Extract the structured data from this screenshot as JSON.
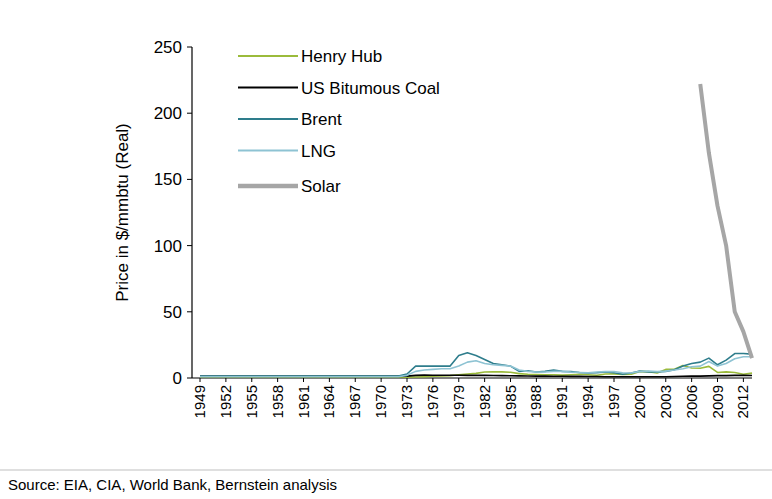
{
  "chart_data": {
    "type": "line",
    "y_label": "Price in $/mmbtu (Real)",
    "source": "Source: EIA, CIA, World Bank, Bernstein analysis",
    "x": [
      1949,
      1950,
      1951,
      1952,
      1953,
      1954,
      1955,
      1956,
      1957,
      1958,
      1959,
      1960,
      1961,
      1962,
      1963,
      1964,
      1965,
      1966,
      1967,
      1968,
      1969,
      1970,
      1971,
      1972,
      1973,
      1974,
      1975,
      1976,
      1977,
      1978,
      1979,
      1980,
      1981,
      1982,
      1983,
      1984,
      1985,
      1986,
      1987,
      1988,
      1989,
      1990,
      1991,
      1992,
      1993,
      1994,
      1995,
      1996,
      1997,
      1998,
      1999,
      2000,
      2001,
      2002,
      2003,
      2004,
      2005,
      2006,
      2007,
      2008,
      2009,
      2010,
      2011,
      2012,
      2013
    ],
    "xlim": [
      1949,
      2013
    ],
    "xticks": [
      1949,
      1952,
      1955,
      1958,
      1961,
      1964,
      1967,
      1970,
      1973,
      1976,
      1979,
      1982,
      1985,
      1988,
      1991,
      1994,
      1997,
      2000,
      2003,
      2006,
      2009,
      2012
    ],
    "ylim": [
      0,
      250
    ],
    "yticks": [
      0,
      50,
      100,
      150,
      200,
      250
    ],
    "grid": false,
    "legend": "upper-left",
    "series": [
      {
        "name": "Henry Hub",
        "color": "#9bbb3b",
        "line_style": "solid",
        "values": [
          0.4,
          0.4,
          0.4,
          0.4,
          0.4,
          0.4,
          0.4,
          0.4,
          0.4,
          0.4,
          0.4,
          0.4,
          0.4,
          0.4,
          0.4,
          0.4,
          0.4,
          0.4,
          0.4,
          0.4,
          0.4,
          0.4,
          0.4,
          0.4,
          0.6,
          0.8,
          1,
          1.3,
          1.6,
          1.8,
          2.5,
          3,
          3.5,
          4.5,
          4.7,
          4.6,
          4.3,
          3.3,
          2.8,
          2.6,
          2.5,
          2.4,
          2.2,
          2.5,
          2.8,
          2.5,
          2.1,
          3,
          3.1,
          2.6,
          2.8,
          5,
          4.8,
          3.8,
          6.5,
          6.6,
          9.5,
          7.5,
          7.4,
          8.8,
          4.2,
          4.6,
          4.1,
          2.8,
          3.7
        ]
      },
      {
        "name": "US Bitumous Coal",
        "color": "#000000",
        "line_style": "solid",
        "values": [
          1.2,
          1.2,
          1.2,
          1.2,
          1.2,
          1.2,
          1.2,
          1.2,
          1.2,
          1.2,
          1.2,
          1.2,
          1.2,
          1.2,
          1.2,
          1.2,
          1.2,
          1.2,
          1.2,
          1.2,
          1.2,
          1.2,
          1.2,
          1.2,
          1.4,
          2,
          2.2,
          2.1,
          2.1,
          2.1,
          2.1,
          2,
          2,
          2,
          1.9,
          1.8,
          1.7,
          1.6,
          1.5,
          1.4,
          1.4,
          1.3,
          1.3,
          1.2,
          1.2,
          1.1,
          1.1,
          1,
          1,
          1,
          1,
          1,
          1,
          1,
          1,
          1.1,
          1.3,
          1.4,
          1.4,
          1.6,
          1.8,
          1.8,
          2,
          2,
          1.9
        ]
      },
      {
        "name": "Brent",
        "color": "#2e7d8c",
        "line_style": "solid",
        "values": [
          1.5,
          1.5,
          1.5,
          1.5,
          1.5,
          1.5,
          1.5,
          1.5,
          1.5,
          1.5,
          1.5,
          1.5,
          1.5,
          1.5,
          1.5,
          1.5,
          1.5,
          1.5,
          1.5,
          1.5,
          1.5,
          1.5,
          1.5,
          1.5,
          3,
          9,
          9,
          9,
          9,
          9,
          17,
          19,
          17,
          14,
          11,
          10,
          9,
          5,
          5.5,
          4.5,
          5,
          6,
          5,
          4.8,
          4.2,
          3.8,
          4,
          4.5,
          4,
          2.8,
          3.8,
          5.2,
          4.5,
          4.5,
          5,
          6.3,
          9,
          11,
          12,
          15,
          10,
          13.5,
          18.5,
          18.5,
          18
        ]
      },
      {
        "name": "LNG",
        "color": "#8ec3d3",
        "line_style": "solid",
        "values": [
          1,
          1,
          1,
          1,
          1,
          1,
          1,
          1,
          1,
          1,
          1,
          1,
          1,
          1,
          1,
          1,
          1,
          1,
          1,
          1,
          1,
          1,
          1,
          1,
          2,
          5,
          6,
          6.5,
          7,
          7,
          9,
          12,
          13,
          11,
          10,
          9.5,
          9,
          6,
          5,
          4.5,
          4.5,
          5,
          5,
          4.5,
          4.2,
          4,
          4.5,
          4.8,
          4.8,
          4,
          3.8,
          5,
          5.3,
          4.8,
          5.2,
          6,
          7,
          8.5,
          9,
          12.5,
          9,
          11,
          14.5,
          16,
          16
        ]
      },
      {
        "name": "Solar",
        "color": "#a6a6a6",
        "line_style": "thick",
        "values": [
          null,
          null,
          null,
          null,
          null,
          null,
          null,
          null,
          null,
          null,
          null,
          null,
          null,
          null,
          null,
          null,
          null,
          null,
          null,
          null,
          null,
          null,
          null,
          null,
          null,
          null,
          null,
          null,
          null,
          null,
          null,
          null,
          null,
          null,
          null,
          null,
          null,
          null,
          null,
          null,
          null,
          null,
          null,
          null,
          null,
          null,
          null,
          null,
          null,
          null,
          null,
          null,
          null,
          null,
          null,
          null,
          null,
          null,
          222,
          170,
          130,
          100,
          50,
          35,
          15
        ]
      }
    ]
  }
}
